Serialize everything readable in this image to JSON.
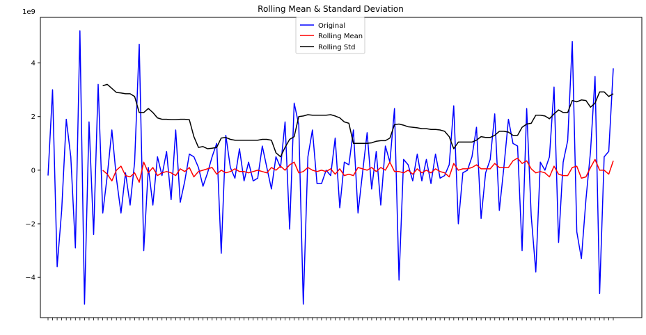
{
  "chart_data": {
    "type": "line",
    "title": "Rolling Mean & Standard Deviation",
    "y_scale_label": "1e9",
    "ylim": [
      -5.5,
      5.7
    ],
    "yticks": [
      -4,
      -2,
      0,
      2,
      4
    ],
    "grid": false,
    "legend_placement": "top-center",
    "x_tick_labels_note": "",
    "series": [
      {
        "name": "Original",
        "color": "#0000ff",
        "values": [
          -0.2,
          3.0,
          -3.6,
          -1.5,
          1.9,
          0.5,
          -2.9,
          5.2,
          -5.0,
          1.8,
          -2.4,
          3.2,
          -1.6,
          -0.2,
          1.5,
          -0.3,
          -1.6,
          -0.1,
          -1.3,
          0.3,
          4.7,
          -3.0,
          0.1,
          -1.3,
          0.5,
          -0.2,
          0.7,
          -1.1,
          1.5,
          -1.2,
          -0.4,
          0.6,
          0.5,
          0.1,
          -0.6,
          -0.1,
          0.5,
          1.0,
          -3.1,
          1.3,
          0.1,
          -0.3,
          0.8,
          -0.4,
          0.3,
          -0.4,
          -0.3,
          0.9,
          0.1,
          -0.7,
          0.5,
          0.1,
          1.8,
          -2.2,
          2.5,
          1.7,
          -5.0,
          0.5,
          1.5,
          -0.5,
          -0.5,
          0.0,
          -0.2,
          1.2,
          -1.4,
          0.3,
          0.2,
          1.5,
          -1.6,
          -0.1,
          1.4,
          -0.7,
          0.7,
          -1.3,
          0.9,
          0.3,
          2.3,
          -4.1,
          0.4,
          0.2,
          -0.4,
          0.6,
          -0.4,
          0.4,
          -0.5,
          0.6,
          -0.3,
          -0.2,
          0.2,
          2.4,
          -2.0,
          -0.1,
          0.0,
          0.5,
          1.6,
          -1.8,
          -0.1,
          0.4,
          2.1,
          -1.5,
          0.1,
          1.9,
          1.0,
          0.9,
          -3.0,
          2.3,
          -1.7,
          -3.8,
          0.3,
          0.0,
          0.5,
          3.1,
          -2.7,
          0.3,
          1.1,
          4.8,
          -2.3,
          -3.3,
          -1.1,
          0.7,
          3.5,
          -4.6,
          0.5,
          0.7,
          3.8
        ]
      },
      {
        "name": "Rolling Mean",
        "color": "#ff0000",
        "start_index": 12,
        "values": [
          0.0,
          -0.15,
          -0.4,
          0.0,
          0.15,
          -0.2,
          -0.25,
          -0.1,
          -0.45,
          0.3,
          -0.1,
          0.1,
          -0.2,
          -0.1,
          -0.05,
          -0.1,
          -0.2,
          0.05,
          -0.05,
          0.1,
          -0.25,
          -0.05,
          0.0,
          0.05,
          0.1,
          -0.15,
          0.0,
          -0.1,
          -0.05,
          0.05,
          -0.05,
          -0.05,
          -0.1,
          -0.05,
          0.0,
          -0.05,
          -0.1,
          0.1,
          0.0,
          0.15,
          0.0,
          0.2,
          0.3,
          -0.1,
          -0.05,
          0.1,
          0.0,
          -0.05,
          0.0,
          -0.05,
          0.05,
          -0.15,
          0.05,
          -0.2,
          -0.15,
          -0.2,
          0.1,
          0.05,
          0.0,
          0.1,
          -0.05,
          0.1,
          0.0,
          0.3,
          -0.05,
          -0.05,
          -0.1,
          0.0,
          -0.15,
          0.05,
          -0.1,
          0.0,
          -0.1,
          0.05,
          -0.05,
          -0.1,
          -0.25,
          0.25,
          0.0,
          0.05,
          0.05,
          0.1,
          0.2,
          0.05,
          0.05,
          0.05,
          0.25,
          0.1,
          0.1,
          0.1,
          0.35,
          0.45,
          0.25,
          0.35,
          0.05,
          -0.1,
          -0.05,
          -0.1,
          -0.25,
          0.15,
          -0.15,
          -0.2,
          -0.2,
          0.1,
          0.15,
          -0.3,
          -0.25,
          0.1,
          0.4,
          0.0,
          0.0,
          -0.15,
          0.35
        ]
      },
      {
        "name": "Rolling Std",
        "color": "#000000",
        "start_index": 12,
        "values": [
          3.15,
          3.2,
          3.05,
          2.9,
          2.88,
          2.85,
          2.85,
          2.75,
          2.15,
          2.15,
          2.3,
          2.15,
          1.95,
          1.9,
          1.9,
          1.88,
          1.88,
          1.9,
          1.9,
          1.88,
          1.25,
          0.85,
          0.88,
          0.8,
          0.82,
          0.85,
          1.2,
          1.22,
          1.15,
          1.12,
          1.12,
          1.12,
          1.12,
          1.12,
          1.12,
          1.15,
          1.15,
          1.12,
          0.65,
          0.5,
          0.85,
          1.15,
          1.25,
          2.0,
          2.02,
          2.07,
          2.05,
          2.05,
          2.05,
          2.05,
          2.07,
          2.02,
          1.95,
          1.8,
          1.75,
          1.0,
          1.0,
          1.0,
          1.0,
          1.02,
          1.08,
          1.1,
          1.1,
          1.2,
          1.7,
          1.72,
          1.68,
          1.62,
          1.6,
          1.58,
          1.55,
          1.55,
          1.52,
          1.52,
          1.5,
          1.45,
          1.25,
          0.8,
          1.05,
          1.05,
          1.05,
          1.05,
          1.12,
          1.25,
          1.22,
          1.22,
          1.3,
          1.45,
          1.45,
          1.42,
          1.3,
          1.3,
          1.6,
          1.72,
          1.75,
          2.05,
          2.05,
          2.02,
          1.92,
          2.1,
          2.25,
          2.15,
          2.15,
          2.6,
          2.55,
          2.62,
          2.6,
          2.35,
          2.5,
          2.92,
          2.92,
          2.75,
          2.85
        ]
      }
    ]
  }
}
